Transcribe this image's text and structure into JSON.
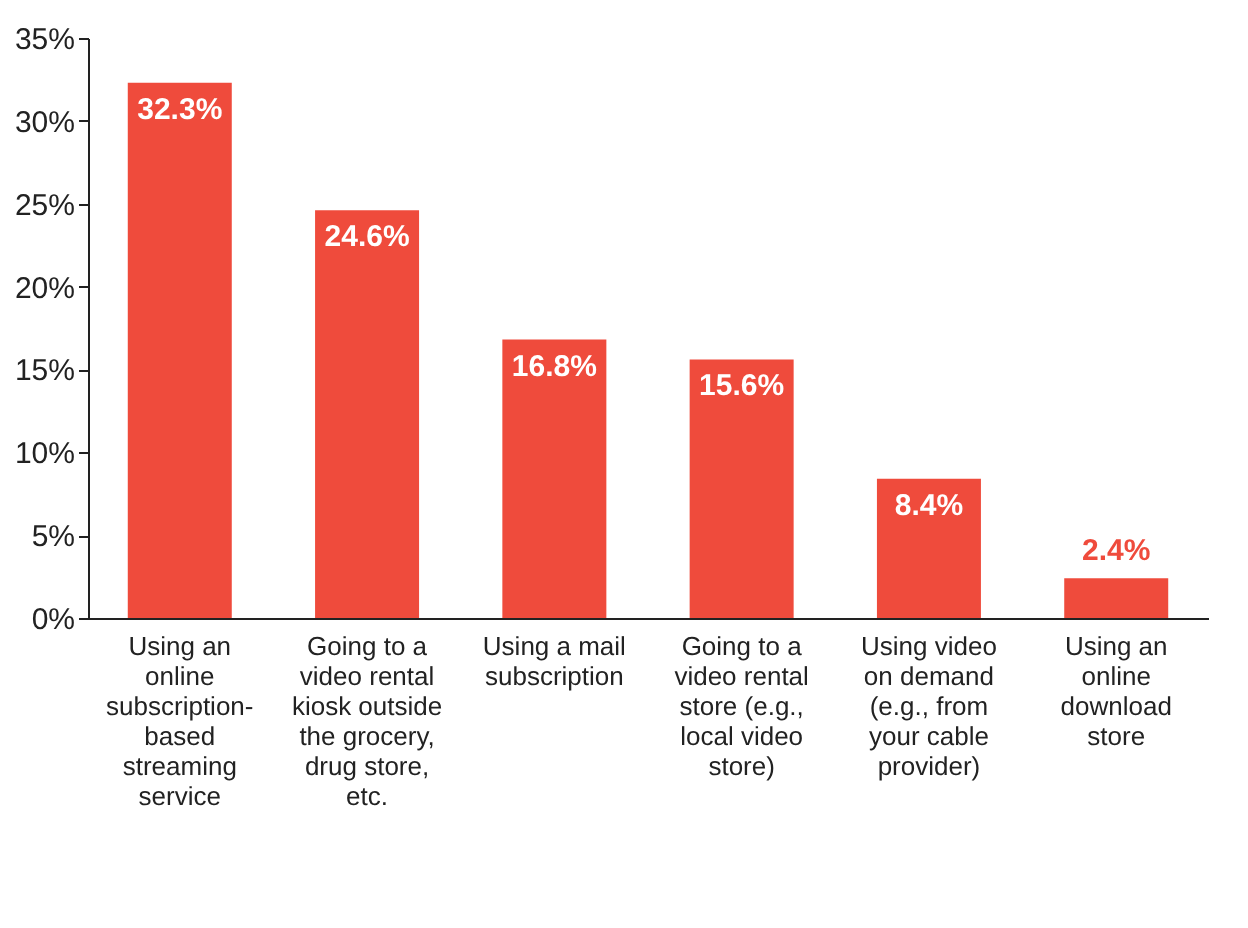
{
  "chart_data": {
    "type": "bar",
    "categories": [
      "Using an online subscription-based streaming service",
      "Going to a video rental kiosk outside the grocery, drug store, etc.",
      "Using a mail subscription",
      "Going to a video rental store (e.g., local video store)",
      "Using video on demand (e.g., from your cable provider)",
      "Using an online download store"
    ],
    "values": [
      32.3,
      24.6,
      16.8,
      15.6,
      8.4,
      2.4
    ],
    "value_labels": [
      "32.3%",
      "24.6%",
      "16.8%",
      "15.6%",
      "8.4%",
      "2.4%"
    ],
    "color": "#ef4b3c",
    "ylim": [
      0,
      35
    ],
    "yticks": [
      {
        "value": 0,
        "label": "0%"
      },
      {
        "value": 5,
        "label": "5%"
      },
      {
        "value": 10,
        "label": "10%"
      },
      {
        "value": 15,
        "label": "15%"
      },
      {
        "value": 20,
        "label": "20%"
      },
      {
        "value": 25,
        "label": "25%"
      },
      {
        "value": 30,
        "label": "30%"
      },
      {
        "value": 35,
        "label": "35%"
      }
    ],
    "grid": false
  }
}
